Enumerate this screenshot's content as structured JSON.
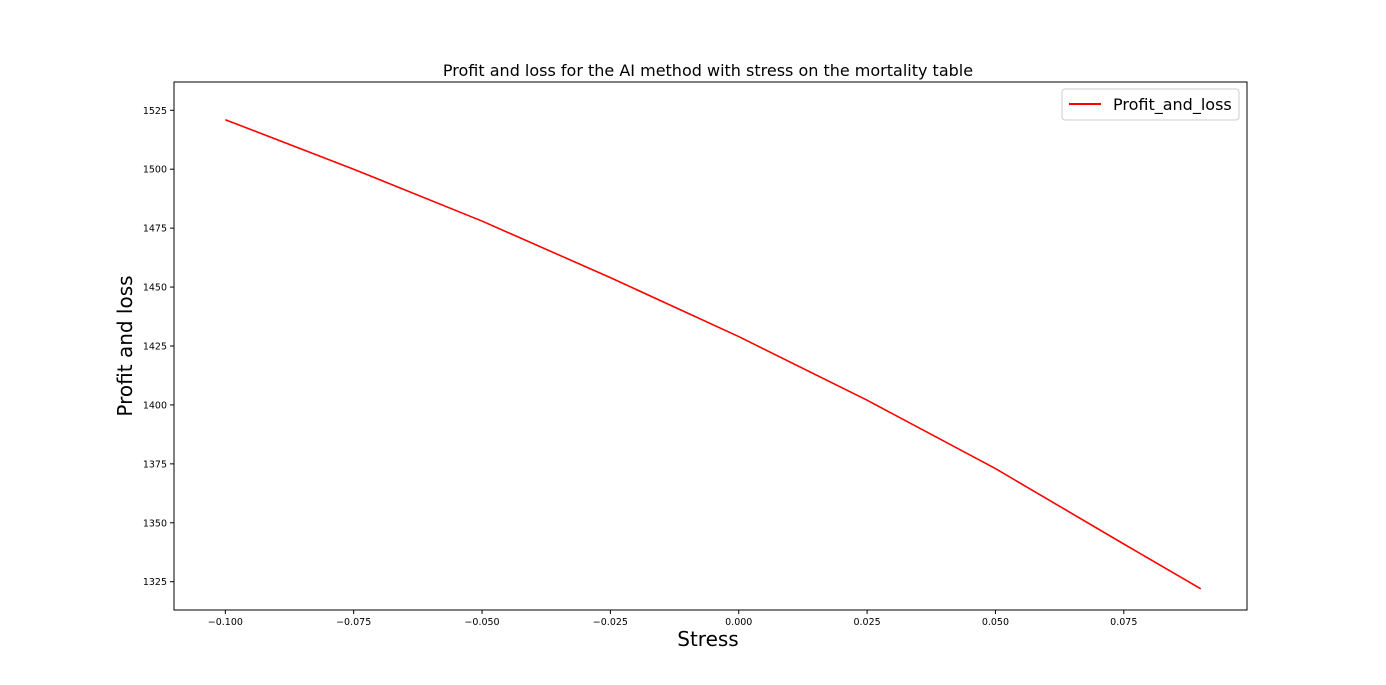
{
  "chart_data": {
    "type": "line",
    "title": "Profit and loss for the AI method with stress on the mortality table",
    "xlabel": "Stress",
    "ylabel": "Profit and loss",
    "xlim": [
      -0.11,
      0.099
    ],
    "ylim": [
      1313,
      1537
    ],
    "xticks": [
      -0.1,
      -0.075,
      -0.05,
      -0.025,
      0.0,
      0.025,
      0.05,
      0.075
    ],
    "xtick_labels": [
      "−0.100",
      "−0.075",
      "−0.050",
      "−0.025",
      "0.000",
      "0.025",
      "0.050",
      "0.075"
    ],
    "yticks": [
      1325,
      1350,
      1375,
      1400,
      1425,
      1450,
      1475,
      1500,
      1525
    ],
    "ytick_labels": [
      "1325",
      "1350",
      "1375",
      "1400",
      "1425",
      "1450",
      "1475",
      "1500",
      "1525"
    ],
    "grid": false,
    "legend_position": "top-right",
    "series": [
      {
        "name": "Profit_and_loss",
        "color": "#ff0000",
        "x": [
          -0.1,
          -0.075,
          -0.05,
          -0.025,
          0.0,
          0.025,
          0.05,
          0.075,
          0.09
        ],
        "y": [
          1521,
          1500,
          1478,
          1454,
          1429,
          1402,
          1373,
          1341,
          1322
        ]
      }
    ]
  }
}
